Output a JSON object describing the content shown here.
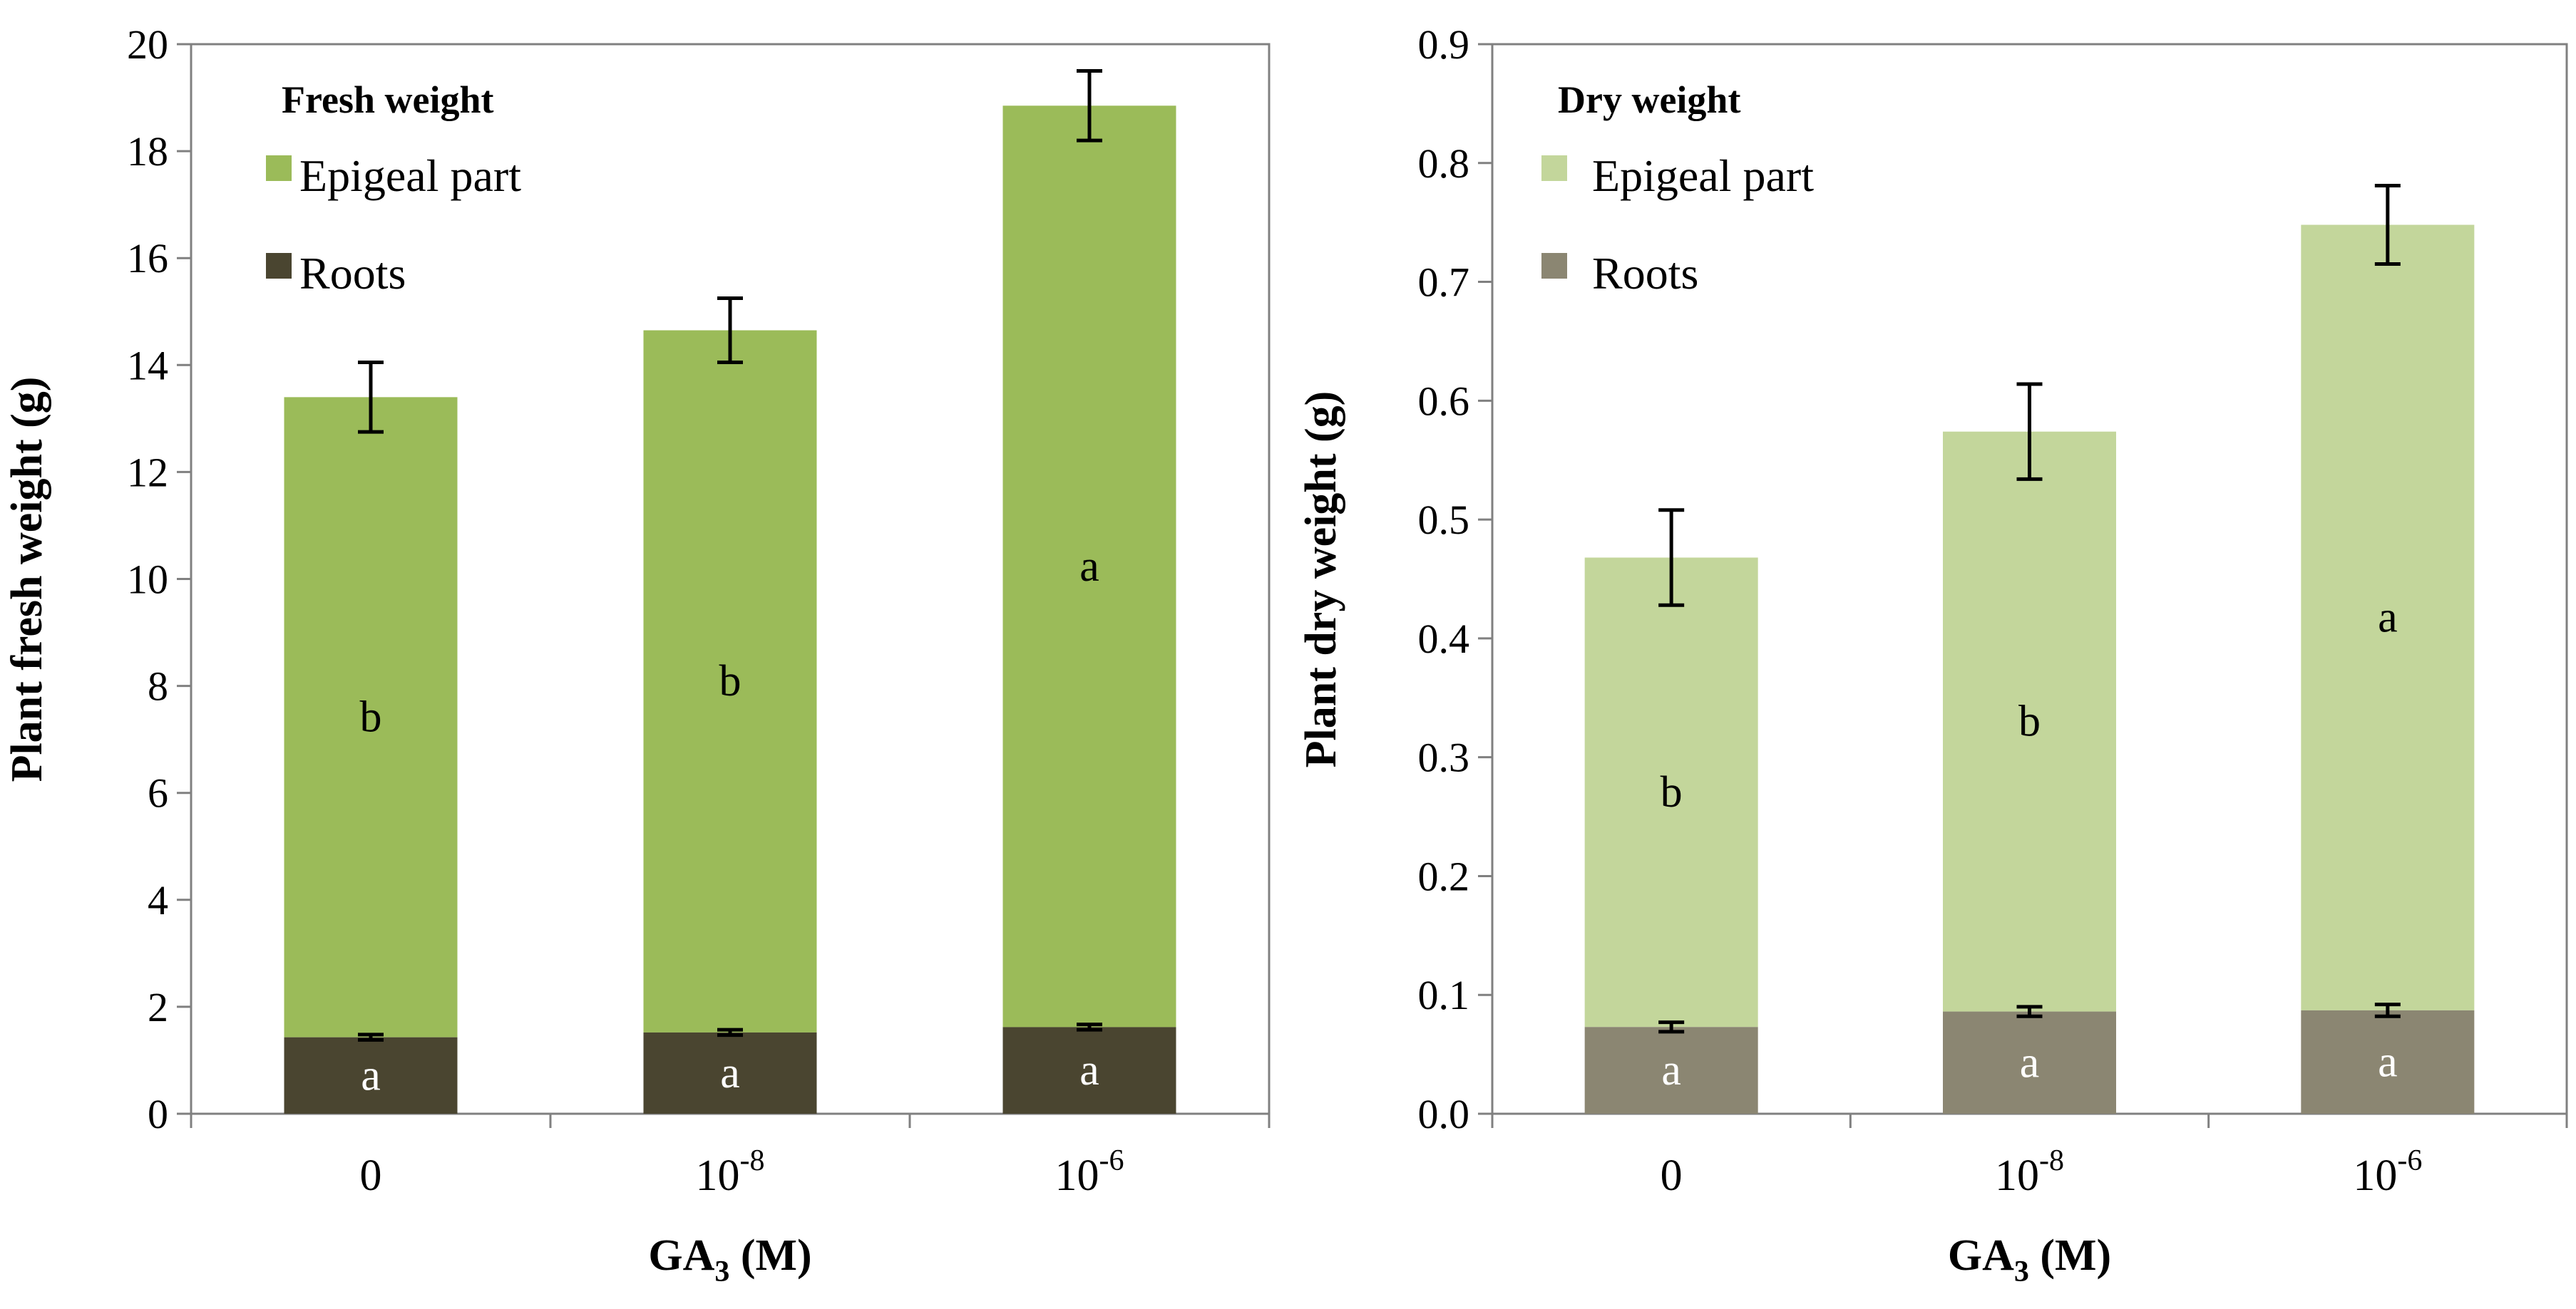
{
  "colors": {
    "fresh_epigeal": "#9bbb59",
    "fresh_roots": "#4a4530",
    "dry_epigeal": "#c3d69b",
    "dry_roots": "#8b8672",
    "axis": "#808080",
    "text": "#000000",
    "label_on_dark": "#ffffff"
  },
  "chart_data": [
    {
      "type": "bar",
      "stacked": true,
      "title": "Fresh weight",
      "ylabel": "Plant fresh weight (g)",
      "xlabel": {
        "base": "GA",
        "sub": "3",
        "rest": " (M)"
      },
      "ylim": [
        0,
        20
      ],
      "yticks": [
        "0",
        "2",
        "4",
        "6",
        "8",
        "10",
        "12",
        "14",
        "16",
        "18",
        "20"
      ],
      "categories": [
        {
          "base": "0",
          "exp": ""
        },
        {
          "base": "10",
          "exp": "-8"
        },
        {
          "base": "10",
          "exp": "-6"
        }
      ],
      "legend_position": "top-left",
      "series": [
        {
          "name": "Roots",
          "values": [
            1.43,
            1.52,
            1.62
          ],
          "errors": [
            0.05,
            0.05,
            0.05
          ],
          "letters": [
            "a",
            "a",
            "a"
          ]
        },
        {
          "name": "Epigeal part",
          "values": [
            11.97,
            13.13,
            17.23
          ],
          "errors": [
            0.65,
            0.6,
            0.65
          ],
          "letters": [
            "b",
            "b",
            "a"
          ]
        }
      ]
    },
    {
      "type": "bar",
      "stacked": true,
      "title": "Dry weight",
      "ylabel": "Plant dry  weight (g)",
      "xlabel": {
        "base": "GA",
        "sub": "3",
        "rest": " (M)"
      },
      "ylim": [
        0,
        0.9
      ],
      "yticks": [
        "0.0",
        "0.1",
        "0.2",
        "0.3",
        "0.4",
        "0.5",
        "0.6",
        "0.7",
        "0.8",
        "0.9"
      ],
      "categories": [
        {
          "base": "0",
          "exp": ""
        },
        {
          "base": "10",
          "exp": "-8"
        },
        {
          "base": "10",
          "exp": "-6"
        }
      ],
      "legend_position": "top-left",
      "series": [
        {
          "name": "Roots",
          "values": [
            0.073,
            0.086,
            0.087
          ],
          "errors": [
            0.004,
            0.004,
            0.005
          ],
          "letters": [
            "a",
            "a",
            "a"
          ]
        },
        {
          "name": "Epigeal part",
          "values": [
            0.395,
            0.488,
            0.661
          ],
          "errors": [
            0.04,
            0.04,
            0.033
          ],
          "letters": [
            "b",
            "b",
            "a"
          ]
        }
      ]
    }
  ]
}
